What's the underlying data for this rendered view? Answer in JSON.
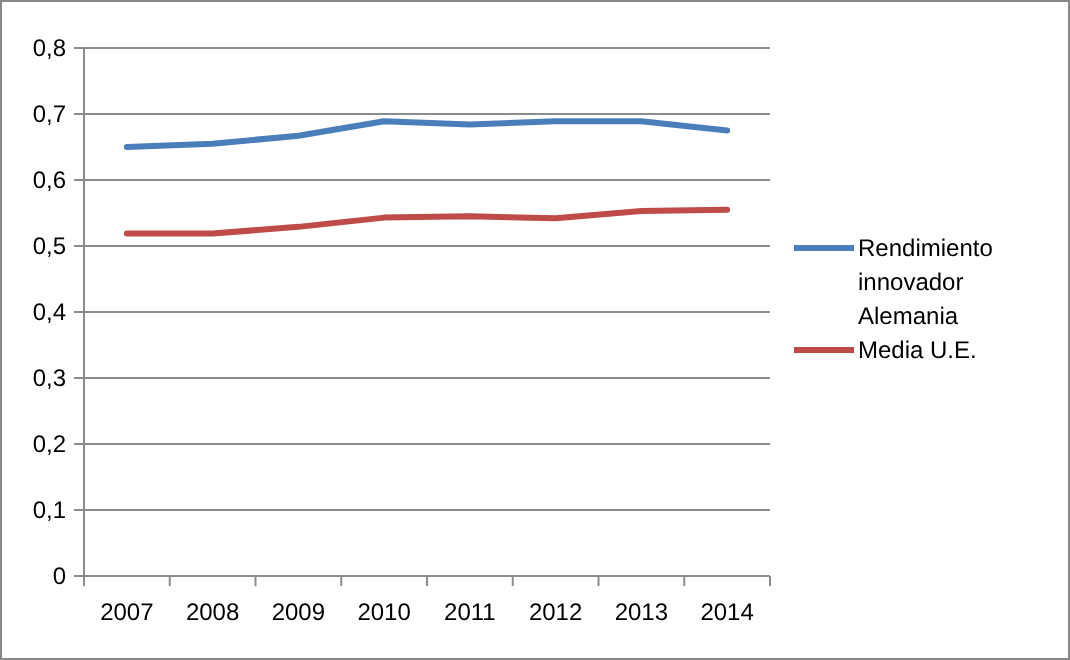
{
  "chart_data": {
    "type": "line",
    "categories": [
      "2007",
      "2008",
      "2009",
      "2010",
      "2011",
      "2012",
      "2013",
      "2014"
    ],
    "series": [
      {
        "name": "Rendimiento innovador Alemania",
        "color": "#4a7ebb",
        "values": [
          0.65,
          0.655,
          0.667,
          0.689,
          0.684,
          0.689,
          0.689,
          0.675
        ]
      },
      {
        "name": "Media U.E.",
        "color": "#be4b48",
        "values": [
          0.519,
          0.519,
          0.529,
          0.543,
          0.545,
          0.542,
          0.553,
          0.555
        ]
      }
    ],
    "ylim": [
      0,
      0.8
    ],
    "yticks": [
      {
        "value": 0,
        "label": "0"
      },
      {
        "value": 0.1,
        "label": "0,1"
      },
      {
        "value": 0.2,
        "label": "0,2"
      },
      {
        "value": 0.3,
        "label": "0,3"
      },
      {
        "value": 0.4,
        "label": "0,4"
      },
      {
        "value": 0.5,
        "label": "0,5"
      },
      {
        "value": 0.6,
        "label": "0,6"
      },
      {
        "value": 0.7,
        "label": "0,7"
      },
      {
        "value": 0.8,
        "label": "0,8"
      }
    ],
    "grid": "y",
    "legend": "right",
    "marker": "none",
    "line_style": "solid"
  }
}
